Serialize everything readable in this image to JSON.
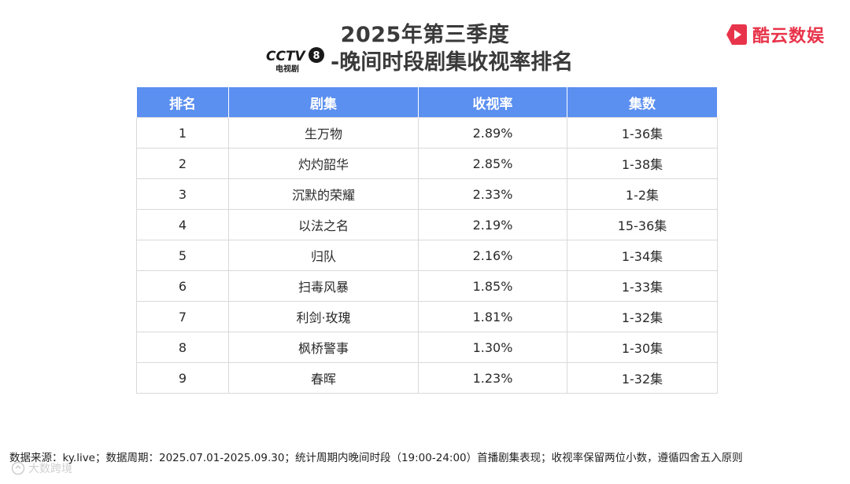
{
  "header": {
    "title_line1": "2025年第三季度",
    "logo_text_top": "CCTV",
    "logo_number": "8",
    "logo_text_bottom": "电视剧",
    "title_line2_suffix": "-晚间时段剧集收视率排名"
  },
  "brand": {
    "name": "酷云数娱",
    "color": "#e8344a"
  },
  "table": {
    "header_color": "#5b8ff0",
    "columns": [
      "排名",
      "剧集",
      "收视率",
      "集数"
    ],
    "rows": [
      {
        "rank": "1",
        "drama": "生万物",
        "rating": "2.89%",
        "episodes": "1-36集"
      },
      {
        "rank": "2",
        "drama": "灼灼韶华",
        "rating": "2.85%",
        "episodes": "1-38集"
      },
      {
        "rank": "3",
        "drama": "沉默的荣耀",
        "rating": "2.33%",
        "episodes": "1-2集"
      },
      {
        "rank": "4",
        "drama": "以法之名",
        "rating": "2.19%",
        "episodes": "15-36集"
      },
      {
        "rank": "5",
        "drama": "归队",
        "rating": "2.16%",
        "episodes": "1-34集"
      },
      {
        "rank": "6",
        "drama": "扫毒风暴",
        "rating": "1.85%",
        "episodes": "1-33集"
      },
      {
        "rank": "7",
        "drama": "利剑·玫瑰",
        "rating": "1.81%",
        "episodes": "1-32集"
      },
      {
        "rank": "8",
        "drama": "枫桥警事",
        "rating": "1.30%",
        "episodes": "1-30集"
      },
      {
        "rank": "9",
        "drama": "春晖",
        "rating": "1.23%",
        "episodes": "1-32集"
      }
    ]
  },
  "footnote": "数据来源：ky.live；数据周期：2025.07.01-2025.09.30；统计周期内晚间时段（19:00-24:00）首播剧集表现；收视率保留两位小数，遵循四舍五入原则",
  "watermark": "大数跨境"
}
